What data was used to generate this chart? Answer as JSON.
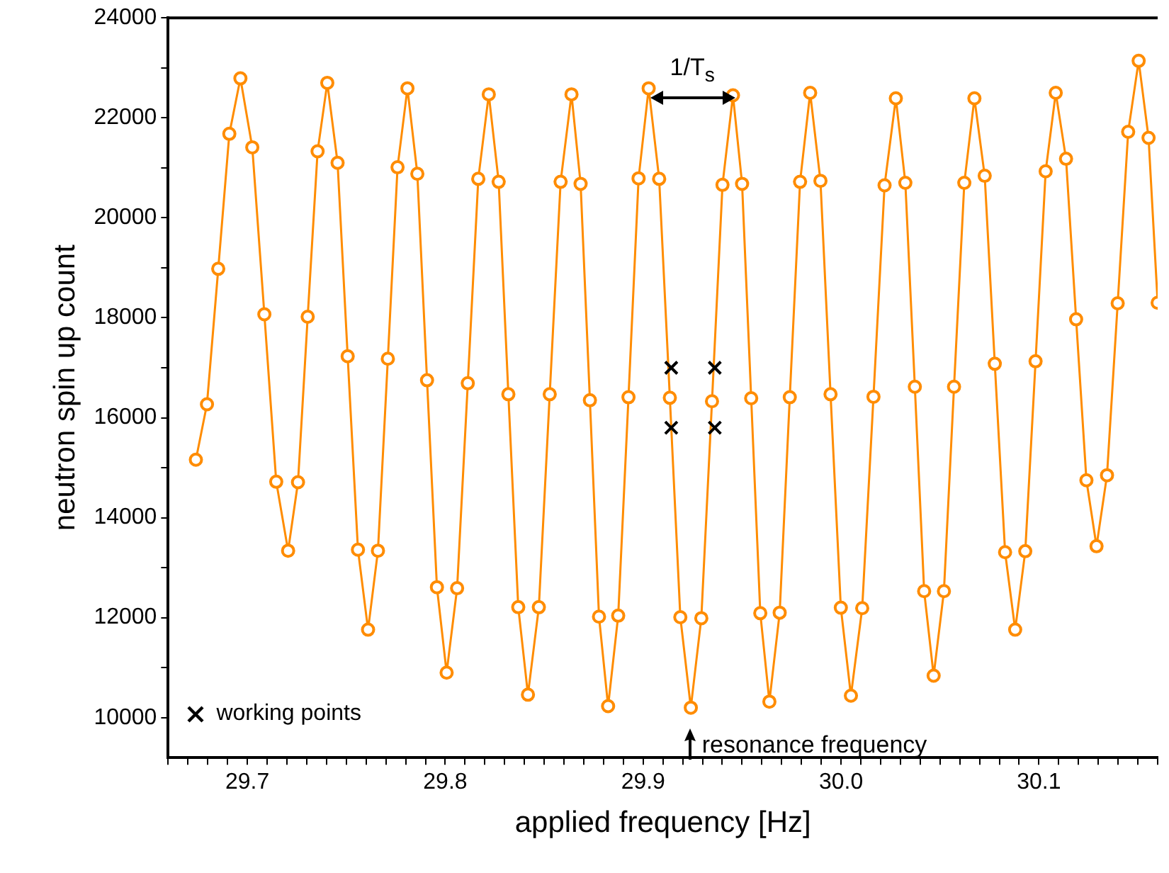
{
  "chart_data": {
    "type": "line",
    "xlabel": "applied frequency [Hz]",
    "ylabel": "neutron spin up count",
    "xlim": [
      29.66,
      30.16
    ],
    "ylim": [
      9200,
      24000
    ],
    "xticks": [
      {
        "value": 29.66,
        "label": null
      },
      {
        "value": 29.67,
        "label": null
      },
      {
        "value": 29.68,
        "label": null
      },
      {
        "value": 29.69,
        "label": null
      },
      {
        "value": 29.7,
        "label": "29.7"
      },
      {
        "value": 29.71,
        "label": null
      },
      {
        "value": 29.72,
        "label": null
      },
      {
        "value": 29.73,
        "label": null
      },
      {
        "value": 29.74,
        "label": null
      },
      {
        "value": 29.75,
        "label": null
      },
      {
        "value": 29.76,
        "label": null
      },
      {
        "value": 29.77,
        "label": null
      },
      {
        "value": 29.78,
        "label": null
      },
      {
        "value": 29.79,
        "label": null
      },
      {
        "value": 29.8,
        "label": "29.8"
      },
      {
        "value": 29.81,
        "label": null
      },
      {
        "value": 29.82,
        "label": null
      },
      {
        "value": 29.83,
        "label": null
      },
      {
        "value": 29.84,
        "label": null
      },
      {
        "value": 29.85,
        "label": null
      },
      {
        "value": 29.86,
        "label": null
      },
      {
        "value": 29.87,
        "label": null
      },
      {
        "value": 29.88,
        "label": null
      },
      {
        "value": 29.89,
        "label": null
      },
      {
        "value": 29.9,
        "label": "29.9"
      },
      {
        "value": 29.91,
        "label": null
      },
      {
        "value": 29.92,
        "label": null
      },
      {
        "value": 29.93,
        "label": null
      },
      {
        "value": 29.94,
        "label": null
      },
      {
        "value": 29.95,
        "label": null
      },
      {
        "value": 29.96,
        "label": null
      },
      {
        "value": 29.97,
        "label": null
      },
      {
        "value": 29.98,
        "label": null
      },
      {
        "value": 29.99,
        "label": null
      },
      {
        "value": 30.0,
        "label": "30.0"
      },
      {
        "value": 30.01,
        "label": null
      },
      {
        "value": 30.02,
        "label": null
      },
      {
        "value": 30.03,
        "label": null
      },
      {
        "value": 30.04,
        "label": null
      },
      {
        "value": 30.05,
        "label": null
      },
      {
        "value": 30.06,
        "label": null
      },
      {
        "value": 30.07,
        "label": null
      },
      {
        "value": 30.08,
        "label": null
      },
      {
        "value": 30.09,
        "label": null
      },
      {
        "value": 30.1,
        "label": "30.1"
      },
      {
        "value": 30.11,
        "label": null
      },
      {
        "value": 30.12,
        "label": null
      },
      {
        "value": 30.13,
        "label": null
      },
      {
        "value": 30.14,
        "label": null
      },
      {
        "value": 30.15,
        "label": null
      },
      {
        "value": 30.16,
        "label": null
      }
    ],
    "yticks": [
      10000,
      {
        "value": 11000,
        "label": null
      },
      12000,
      {
        "value": 13000,
        "label": null
      },
      14000,
      {
        "value": 15000,
        "label": null
      },
      16000,
      {
        "value": 17000,
        "label": null
      },
      18000,
      {
        "value": 19000,
        "label": null
      },
      20000,
      {
        "value": 21000,
        "label": null
      },
      22000,
      {
        "value": 23000,
        "label": null
      },
      24000
    ],
    "grid": false,
    "legend": "bottom left",
    "marker": "circle",
    "line_style": "solid",
    "annotations": [
      "1/T$_{s}$",
      {
        "text": "resonance frequency",
        "x": 29.924,
        "y": 9450
      }
    ],
    "series": [
      {
        "color": "#ff8c00",
        "x": [
          29.674,
          29.6796,
          29.6853,
          29.6909,
          29.6965,
          29.7025,
          29.7086,
          29.7146,
          29.7206,
          29.7256,
          29.7305,
          29.7355,
          29.7404,
          29.7456,
          29.7507,
          29.7559,
          29.761,
          29.766,
          29.771,
          29.7759,
          29.7809,
          29.7859,
          29.7908,
          29.7958,
          29.8007,
          29.806,
          29.8114,
          29.8167,
          29.822,
          29.827,
          29.8319,
          29.8369,
          29.8418,
          29.8473,
          29.8528,
          29.8583,
          29.8638,
          29.8684,
          29.8731,
          29.8777,
          29.8823,
          29.8874,
          29.8926,
          29.8977,
          29.9028,
          29.9081,
          29.9135,
          29.9188,
          29.9241,
          29.9294,
          29.9348,
          29.9401,
          29.9454,
          29.95,
          29.9546,
          29.9592,
          29.9638,
          29.969,
          29.9741,
          29.9793,
          29.9844,
          29.9896,
          29.9947,
          29.9999,
          30.005,
          30.0107,
          30.0164,
          30.022,
          30.0277,
          30.0325,
          30.0373,
          30.042,
          30.0468,
          30.052,
          30.0571,
          30.0623,
          30.0674,
          30.0726,
          30.0777,
          30.0829,
          30.088,
          30.0931,
          30.0983,
          30.1034,
          30.1085,
          30.1137,
          30.1188,
          30.124,
          30.1291,
          30.1344,
          30.1398,
          30.1451,
          30.1504,
          30.1554,
          30.16
        ],
        "values": [
          15160,
          16270,
          18980,
          21680,
          22790,
          21410,
          18070,
          14720,
          13340,
          14710,
          18020,
          21330,
          22700,
          21100,
          17230,
          13360,
          11760,
          13340,
          17180,
          21010,
          22590,
          20880,
          16750,
          12610,
          10900,
          12590,
          16690,
          20780,
          22470,
          20720,
          16470,
          12210,
          10460,
          12210,
          16470,
          20720,
          22470,
          20680,
          16350,
          12020,
          10230,
          12040,
          16410,
          20790,
          22590,
          20780,
          16400,
          12010,
          10200,
          11990,
          16330,
          20660,
          22450,
          20680,
          16390,
          12090,
          10320,
          12100,
          16410,
          20720,
          22500,
          20740,
          16470,
          12200,
          10440,
          12190,
          16420,
          20650,
          22390,
          20700,
          16620,
          12530,
          10840,
          12530,
          16620,
          20700,
          22390,
          20840,
          17080,
          13310,
          11760,
          13330,
          17130,
          20930,
          22500,
          21180,
          17970,
          14750,
          13430,
          14850,
          18290,
          21720,
          23140,
          21600,
          18300
        ]
      },
      {
        "name": "working points",
        "type": "scatter",
        "marker": "cross",
        "color": "#000000",
        "x": [
          29.9142,
          29.9142,
          29.9362,
          29.9362
        ],
        "values": [
          17000,
          15800,
          17000,
          15800
        ]
      }
    ]
  }
}
